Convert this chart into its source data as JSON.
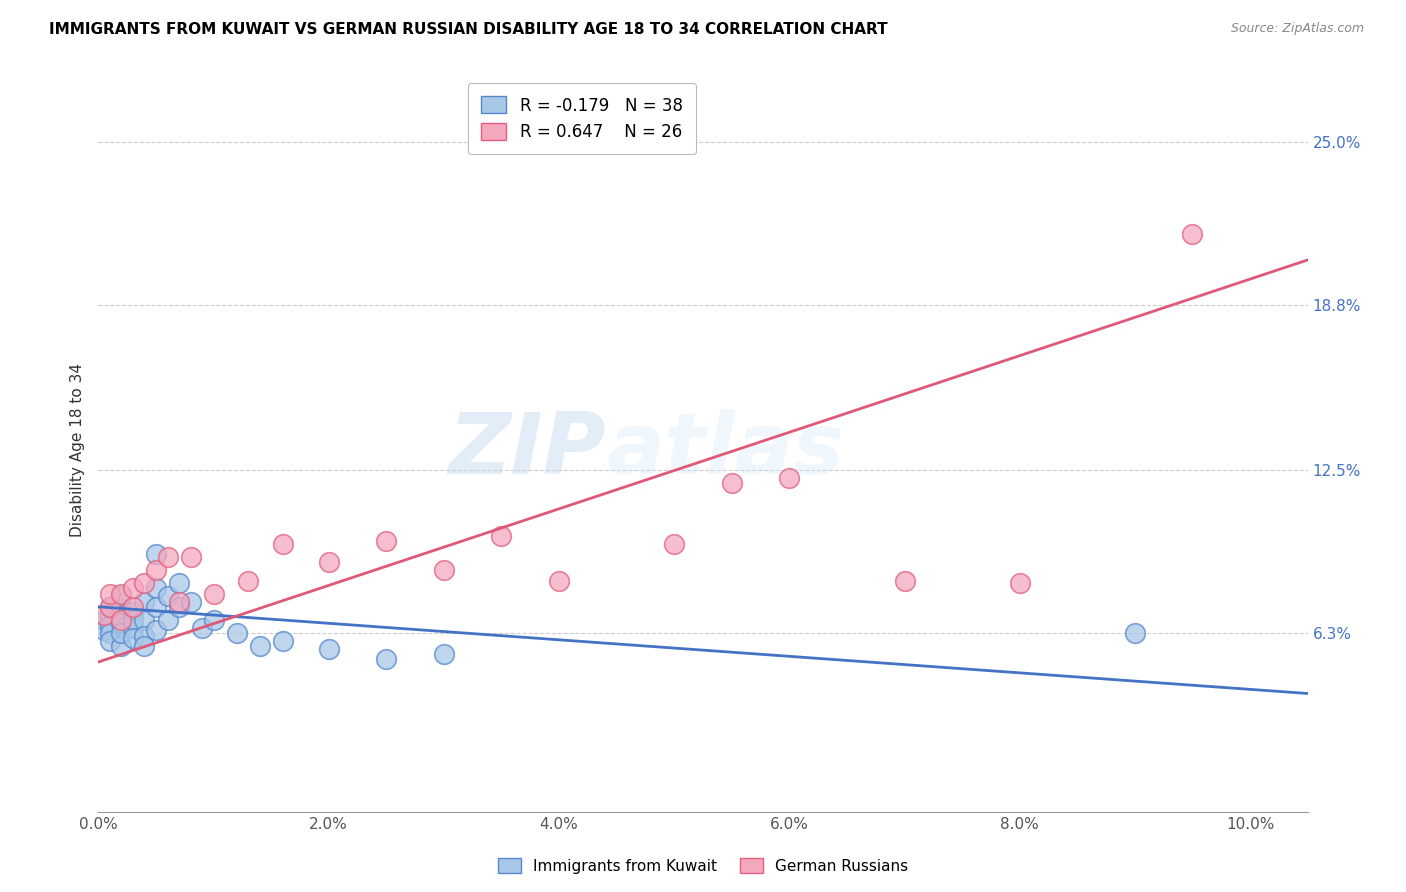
{
  "title": "IMMIGRANTS FROM KUWAIT VS GERMAN RUSSIAN DISABILITY AGE 18 TO 34 CORRELATION CHART",
  "source": "Source: ZipAtlas.com",
  "ylabel": "Disability Age 18 to 34",
  "xlim": [
    0.0,
    0.105
  ],
  "ylim": [
    -0.005,
    0.27
  ],
  "xtick_labels": [
    "0.0%",
    "2.0%",
    "4.0%",
    "6.0%",
    "8.0%",
    "10.0%"
  ],
  "xtick_vals": [
    0.0,
    0.02,
    0.04,
    0.06,
    0.08,
    0.1
  ],
  "ytick_right_labels": [
    "6.3%",
    "12.5%",
    "18.8%",
    "25.0%"
  ],
  "ytick_right_vals": [
    0.063,
    0.125,
    0.188,
    0.25
  ],
  "blue_R": -0.179,
  "blue_N": 38,
  "pink_R": 0.647,
  "pink_N": 26,
  "blue_label": "Immigrants from Kuwait",
  "pink_label": "German Russians",
  "blue_color": "#A8C8E8",
  "pink_color": "#F4A8BE",
  "blue_edge_color": "#5588CC",
  "pink_edge_color": "#E06080",
  "blue_line_color": "#4472C4",
  "pink_line_color": "#E05878",
  "watermark": "ZIPatlas",
  "blue_x": [
    0.0005,
    0.0005,
    0.001,
    0.001,
    0.001,
    0.001,
    0.001,
    0.002,
    0.002,
    0.002,
    0.002,
    0.002,
    0.003,
    0.003,
    0.003,
    0.003,
    0.004,
    0.004,
    0.004,
    0.004,
    0.005,
    0.005,
    0.005,
    0.006,
    0.006,
    0.007,
    0.007,
    0.008,
    0.009,
    0.01,
    0.012,
    0.014,
    0.016,
    0.02,
    0.025,
    0.03,
    0.09,
    0.005
  ],
  "blue_y": [
    0.068,
    0.064,
    0.07,
    0.066,
    0.063,
    0.06,
    0.073,
    0.072,
    0.067,
    0.058,
    0.063,
    0.077,
    0.071,
    0.065,
    0.068,
    0.061,
    0.075,
    0.068,
    0.062,
    0.058,
    0.08,
    0.073,
    0.064,
    0.077,
    0.068,
    0.082,
    0.073,
    0.075,
    0.065,
    0.068,
    0.063,
    0.058,
    0.06,
    0.057,
    0.053,
    0.055,
    0.063,
    0.093
  ],
  "pink_x": [
    0.0005,
    0.001,
    0.001,
    0.002,
    0.002,
    0.003,
    0.003,
    0.004,
    0.005,
    0.006,
    0.007,
    0.008,
    0.01,
    0.013,
    0.016,
    0.02,
    0.025,
    0.03,
    0.035,
    0.04,
    0.05,
    0.055,
    0.06,
    0.07,
    0.08,
    0.095
  ],
  "pink_y": [
    0.07,
    0.073,
    0.078,
    0.068,
    0.078,
    0.073,
    0.08,
    0.082,
    0.087,
    0.092,
    0.075,
    0.092,
    0.078,
    0.083,
    0.097,
    0.09,
    0.098,
    0.087,
    0.1,
    0.083,
    0.097,
    0.12,
    0.122,
    0.083,
    0.082,
    0.215
  ],
  "blue_line_x0": 0.0,
  "blue_line_x1": 0.105,
  "blue_line_y0": 0.073,
  "blue_line_y1": 0.04,
  "pink_line_x0": 0.0,
  "pink_line_x1": 0.105,
  "pink_line_y0": 0.052,
  "pink_line_y1": 0.205
}
